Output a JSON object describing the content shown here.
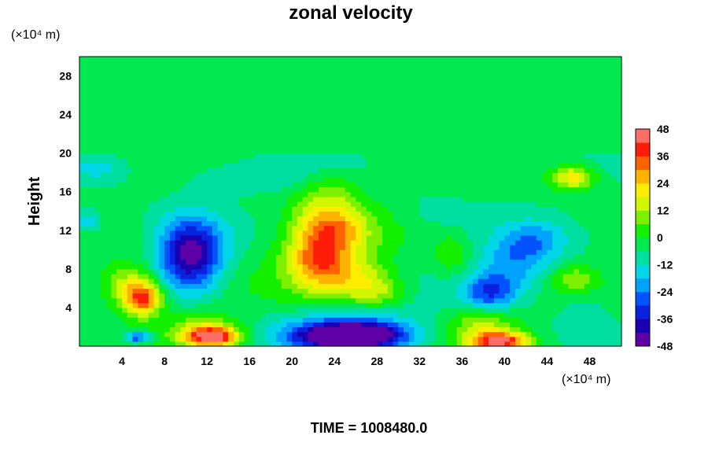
{
  "chart_data": {
    "type": "heatmap",
    "title": "zonal velocity",
    "ylabel": "Height",
    "x_unit_label": "(×10⁴ m)",
    "y_unit_label": "(×10⁴ m)",
    "footer_label": "TIME = 1008480.0",
    "xlim": [
      0,
      51
    ],
    "ylim": [
      0,
      30
    ],
    "x_ticks": [
      4,
      8,
      12,
      16,
      20,
      24,
      28,
      32,
      36,
      40,
      44,
      48
    ],
    "y_ticks": [
      4,
      8,
      12,
      16,
      20,
      24,
      28
    ],
    "colorbar": {
      "range": [
        -48,
        48
      ],
      "ticks": [
        48,
        36,
        24,
        12,
        0,
        -12,
        -24,
        -36,
        -48
      ]
    },
    "features": [
      {
        "kind": "uniform_layer",
        "y_range": [
          20,
          30
        ],
        "value": 0
      },
      {
        "kind": "extreme",
        "x": 10.5,
        "y": 9.5,
        "value": -42
      },
      {
        "kind": "extreme",
        "x": 22.5,
        "y": 9.0,
        "value": 40
      },
      {
        "kind": "extreme",
        "x": 24.5,
        "y": 12.5,
        "value": 38
      },
      {
        "kind": "extreme",
        "x": 6.0,
        "y": 5.0,
        "value": 40
      },
      {
        "kind": "extreme",
        "x": 38.5,
        "y": 5.5,
        "value": -36
      },
      {
        "kind": "extreme",
        "x": 46.5,
        "y": 17.5,
        "value": 26
      },
      {
        "kind": "extreme",
        "x": 25.5,
        "y": 1.0,
        "value": -48
      },
      {
        "kind": "extreme",
        "x": 12.5,
        "y": 1.0,
        "value": 46
      },
      {
        "kind": "extreme",
        "x": 39.5,
        "y": 0.5,
        "value": 46
      }
    ]
  }
}
